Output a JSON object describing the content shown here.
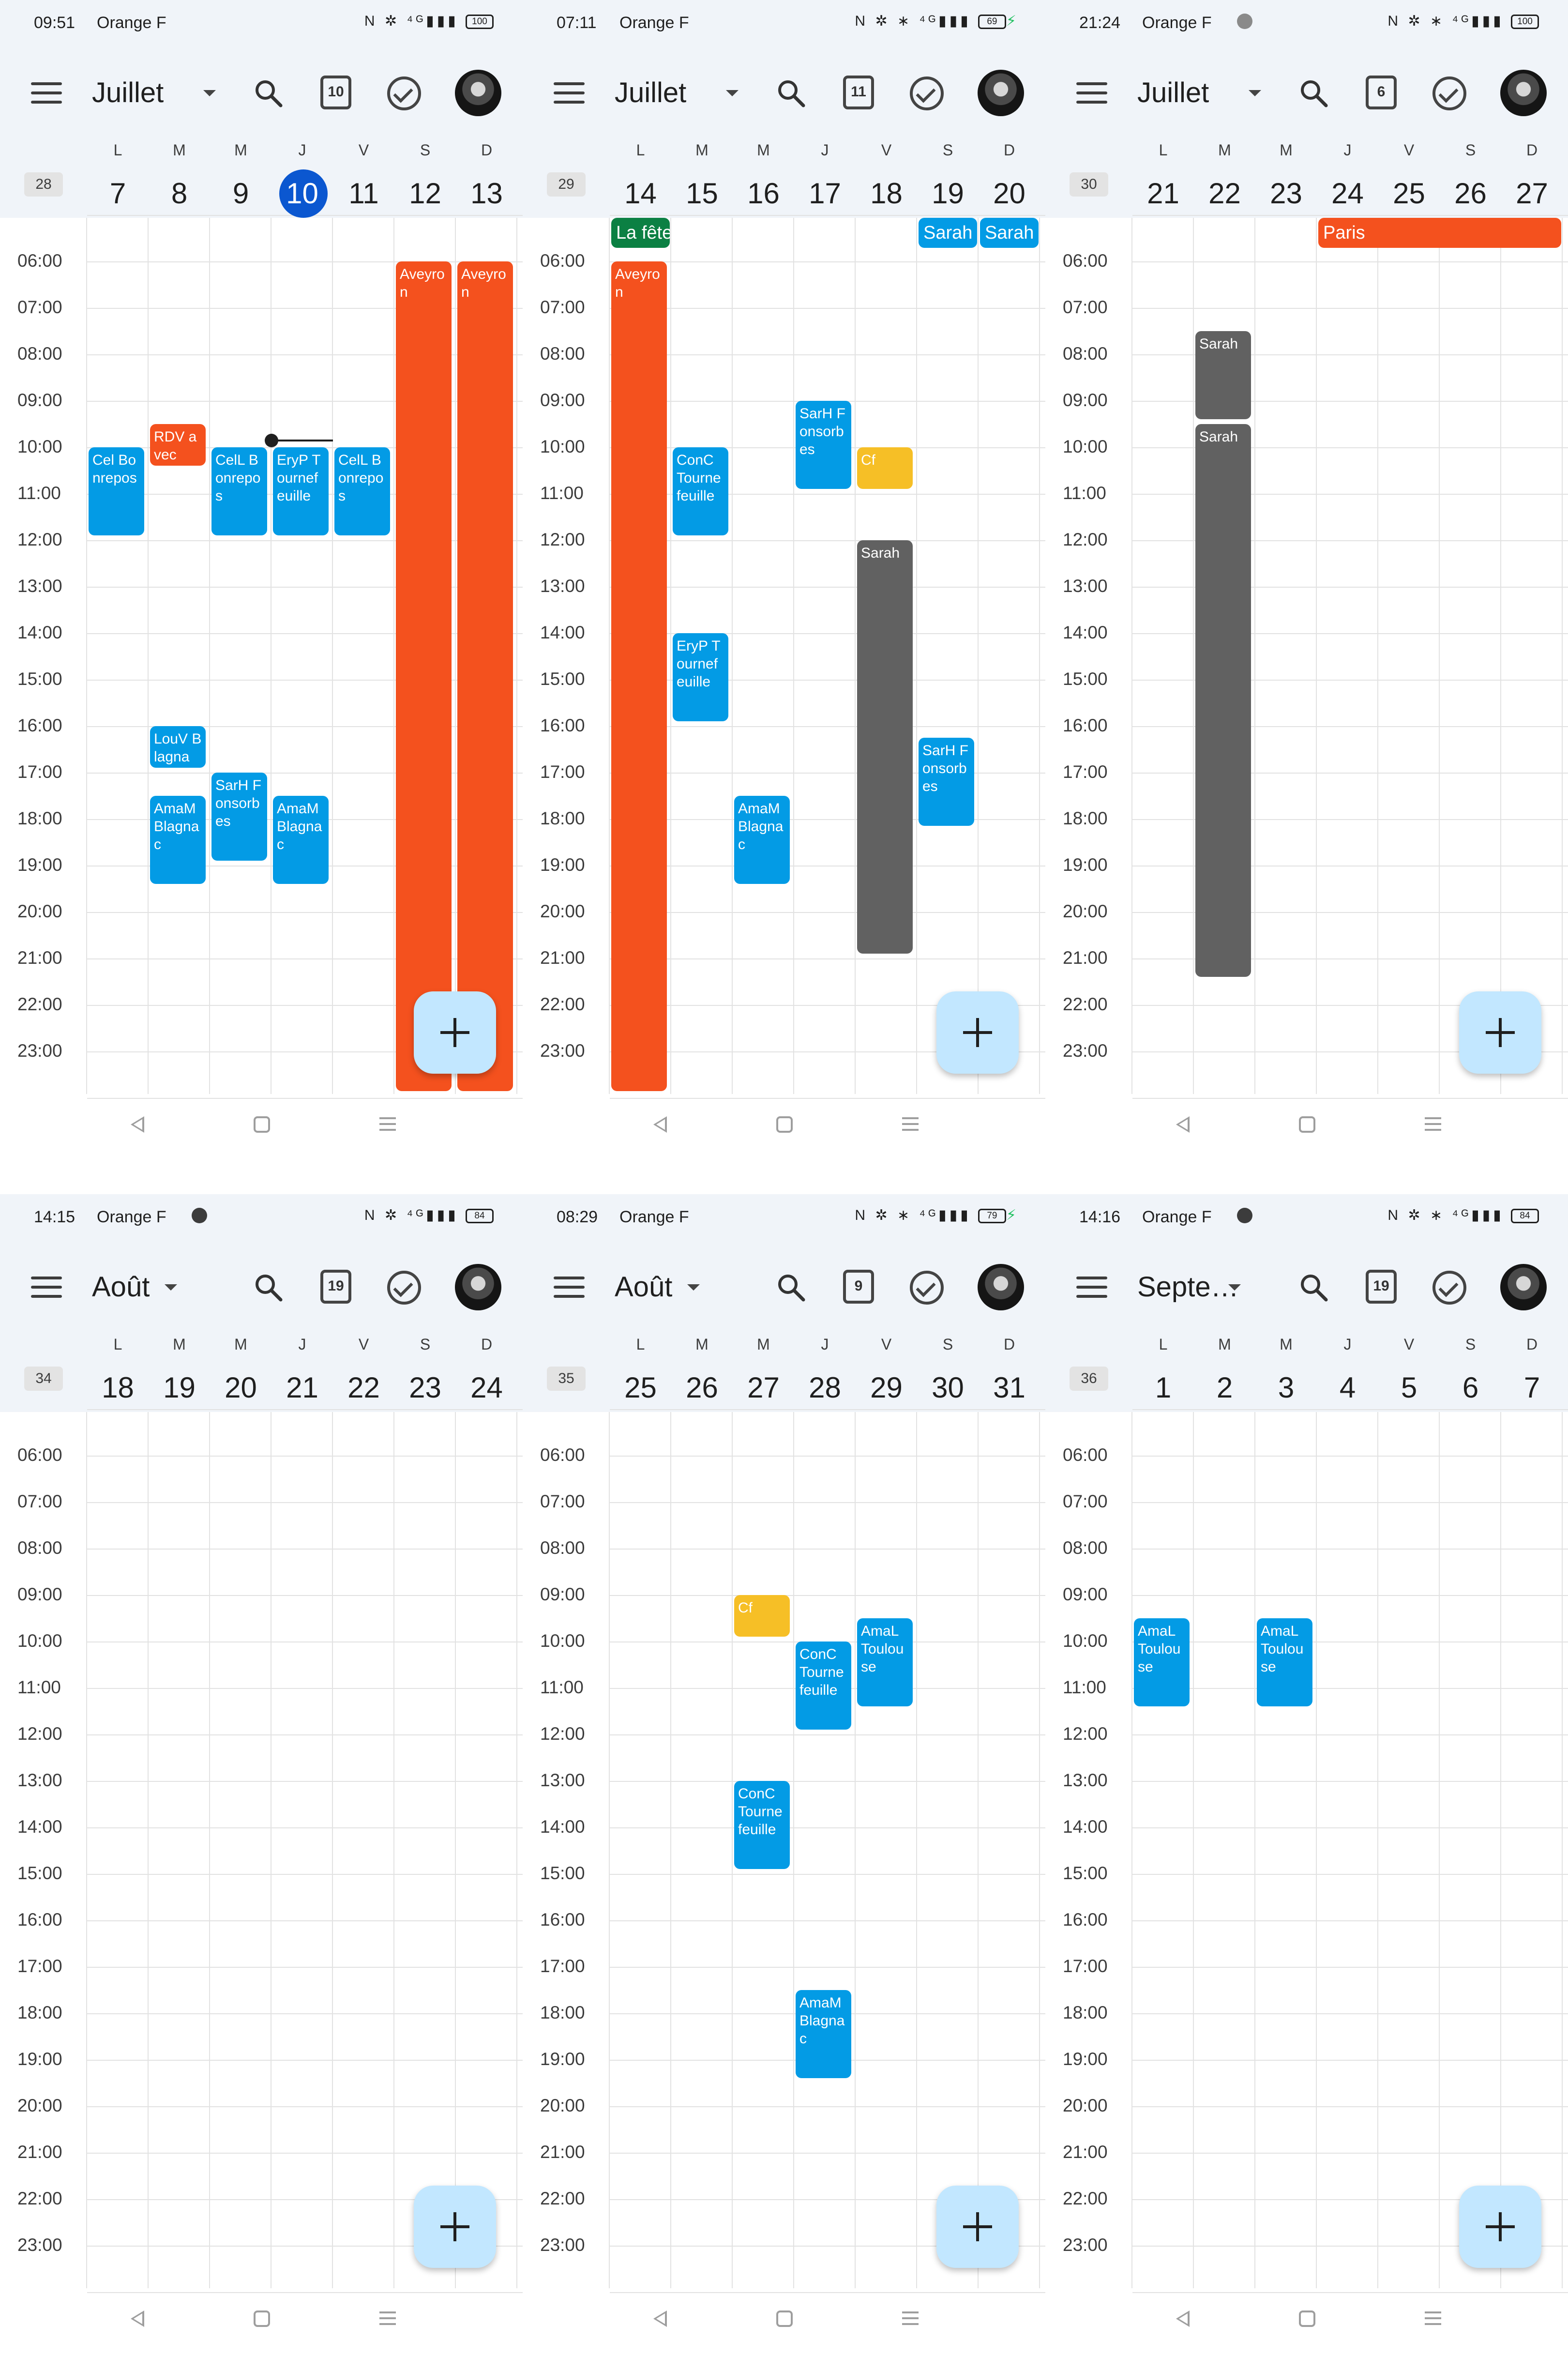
{
  "colors": {
    "event_blue": "#039be5",
    "event_orange": "#f4511e",
    "event_grey": "#616161",
    "event_yellow": "#f6bf26",
    "event_green": "#0b8043",
    "today_circle": "#0b57d0",
    "header_bg": "#f0f4f9",
    "fab_bg": "#c2e7ff"
  },
  "icons": {
    "menu": "menu-icon",
    "search": "search-icon",
    "today": "calendar-today-icon",
    "tasks": "tasks-check-icon",
    "add": "plus-icon",
    "nav_back": "back-triangle-icon",
    "nav_home": "home-square-icon",
    "nav_recent": "recent-apps-icon"
  },
  "hours": [
    "06:00",
    "07:00",
    "08:00",
    "09:00",
    "10:00",
    "11:00",
    "12:00",
    "13:00",
    "14:00",
    "15:00",
    "16:00",
    "17:00",
    "18:00",
    "19:00",
    "20:00",
    "21:00",
    "22:00",
    "23:00"
  ],
  "day_letters": [
    "L",
    "M",
    "M",
    "J",
    "V",
    "S",
    "D"
  ],
  "panels": [
    {
      "status": {
        "time": "09:51",
        "carrier": "Orange F",
        "battery": "100",
        "charging": false,
        "dot": false
      },
      "month": "Juillet",
      "today_badge": "10",
      "week": "28",
      "days": [
        "7",
        "8",
        "9",
        "10",
        "11",
        "12",
        "13"
      ],
      "today_index": 3,
      "allday": [],
      "events": [
        {
          "col": 0,
          "start": 10.0,
          "end": 11.9,
          "color": "blue",
          "title": "Cel Bonrepos"
        },
        {
          "col": 1,
          "start": 9.5,
          "end": 10.4,
          "color": "orange",
          "title": "RDV avec"
        },
        {
          "col": 2,
          "start": 10.0,
          "end": 11.9,
          "color": "blue",
          "title": "CelL Bonrepos"
        },
        {
          "col": 3,
          "start": 10.0,
          "end": 11.9,
          "color": "blue",
          "title": "EryP Tournefeuille"
        },
        {
          "col": 4,
          "start": 10.0,
          "end": 11.9,
          "color": "blue",
          "title": "CelL Bonrepos"
        },
        {
          "col": 5,
          "start": 6.0,
          "end": 23.85,
          "color": "orange",
          "title": "Aveyron"
        },
        {
          "col": 6,
          "start": 6.0,
          "end": 23.85,
          "color": "orange",
          "title": "Aveyron"
        },
        {
          "col": 1,
          "start": 16.0,
          "end": 16.9,
          "color": "blue",
          "title": "LouV Blagna"
        },
        {
          "col": 1,
          "start": 17.5,
          "end": 19.4,
          "color": "blue",
          "title": "AmaM Blagnac"
        },
        {
          "col": 2,
          "start": 17.0,
          "end": 18.9,
          "color": "blue",
          "title": "SarH Fonsorbes"
        },
        {
          "col": 3,
          "start": 17.5,
          "end": 19.4,
          "color": "blue",
          "title": "AmaM Blagnac"
        }
      ],
      "now": {
        "col": 3,
        "hour": 9.85
      }
    },
    {
      "status": {
        "time": "07:11",
        "carrier": "Orange F",
        "battery": "69",
        "charging": true,
        "dot": false
      },
      "month": "Juillet",
      "today_badge": "11",
      "week": "29",
      "days": [
        "14",
        "15",
        "16",
        "17",
        "18",
        "19",
        "20"
      ],
      "today_index": -1,
      "allday": [
        {
          "col": 0,
          "span": 1,
          "color": "green",
          "title": "La fête"
        },
        {
          "col": 5,
          "span": 1,
          "color": "blue",
          "title": "Sarah"
        },
        {
          "col": 6,
          "span": 1,
          "color": "blue",
          "title": "Sarah"
        }
      ],
      "events": [
        {
          "col": 0,
          "start": 6.0,
          "end": 23.85,
          "color": "orange",
          "title": "Aveyron"
        },
        {
          "col": 1,
          "start": 10.0,
          "end": 11.9,
          "color": "blue",
          "title": "ConC Tournefeuille"
        },
        {
          "col": 1,
          "start": 14.0,
          "end": 15.9,
          "color": "blue",
          "title": "EryP Tournefeuille"
        },
        {
          "col": 3,
          "start": 9.0,
          "end": 10.9,
          "color": "blue",
          "title": "SarH Fonsorbes"
        },
        {
          "col": 4,
          "start": 10.0,
          "end": 10.9,
          "color": "yellow",
          "title": "Cf"
        },
        {
          "col": 4,
          "start": 12.0,
          "end": 20.9,
          "color": "grey",
          "title": "Sarah"
        },
        {
          "col": 2,
          "start": 17.5,
          "end": 19.4,
          "color": "blue",
          "title": "AmaM Blagnac"
        },
        {
          "col": 5,
          "start": 16.25,
          "end": 18.15,
          "color": "blue",
          "title": "SarH Fonsorbes"
        }
      ],
      "now": null
    },
    {
      "status": {
        "time": "21:24",
        "carrier": "Orange F",
        "battery": "100",
        "charging": false,
        "dot": true
      },
      "month": "Juillet",
      "today_badge": "6",
      "week": "30",
      "days": [
        "21",
        "22",
        "23",
        "24",
        "25",
        "26",
        "27"
      ],
      "today_index": -1,
      "allday": [
        {
          "col": 3,
          "span": 4,
          "color": "orange",
          "title": "Paris"
        }
      ],
      "events": [
        {
          "col": 1,
          "start": 7.5,
          "end": 9.4,
          "color": "grey",
          "title": "Sarah"
        },
        {
          "col": 1,
          "start": 9.5,
          "end": 21.4,
          "color": "grey",
          "title": "Sarah"
        }
      ],
      "now": null
    },
    {
      "status": {
        "time": "14:15",
        "carrier": "Orange F",
        "battery": "84",
        "charging": false,
        "dot": true
      },
      "month": "Août",
      "today_badge": "19",
      "week": "34",
      "days": [
        "18",
        "19",
        "20",
        "21",
        "22",
        "23",
        "24"
      ],
      "today_index": -1,
      "allday": [],
      "events": [],
      "now": null
    },
    {
      "status": {
        "time": "08:29",
        "carrier": "Orange F",
        "battery": "79",
        "charging": true,
        "dot": false
      },
      "month": "Août",
      "today_badge": "9",
      "week": "35",
      "days": [
        "25",
        "26",
        "27",
        "28",
        "29",
        "30",
        "31"
      ],
      "today_index": -1,
      "allday": [],
      "events": [
        {
          "col": 2,
          "start": 9.0,
          "end": 9.9,
          "color": "yellow",
          "title": "Cf"
        },
        {
          "col": 3,
          "start": 10.0,
          "end": 11.9,
          "color": "blue",
          "title": "ConC Tournefeuille"
        },
        {
          "col": 4,
          "start": 9.5,
          "end": 11.4,
          "color": "blue",
          "title": "AmaL Toulouse"
        },
        {
          "col": 2,
          "start": 13.0,
          "end": 14.9,
          "color": "blue",
          "title": "ConC Tournefeuille"
        },
        {
          "col": 3,
          "start": 17.5,
          "end": 19.4,
          "color": "blue",
          "title": "AmaM Blagnac"
        }
      ],
      "now": null
    },
    {
      "status": {
        "time": "14:16",
        "carrier": "Orange F",
        "battery": "84",
        "charging": false,
        "dot": true
      },
      "month": "Septe…",
      "today_badge": "19",
      "week": "36",
      "days": [
        "1",
        "2",
        "3",
        "4",
        "5",
        "6",
        "7"
      ],
      "today_index": -1,
      "allday": [],
      "events": [
        {
          "col": 0,
          "start": 9.5,
          "end": 11.4,
          "color": "blue",
          "title": "AmaL Toulouse"
        },
        {
          "col": 2,
          "start": 9.5,
          "end": 11.4,
          "color": "blue",
          "title": "AmaL Toulouse"
        }
      ],
      "now": null
    }
  ]
}
